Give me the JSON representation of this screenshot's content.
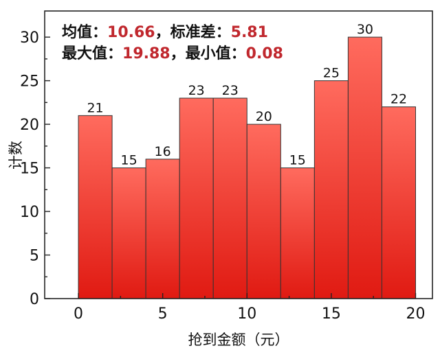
{
  "chart_data": {
    "type": "histogram",
    "bins": [
      {
        "x0": 0,
        "x1": 2,
        "count": 21
      },
      {
        "x0": 2,
        "x1": 4,
        "count": 15
      },
      {
        "x0": 4,
        "x1": 6,
        "count": 16
      },
      {
        "x0": 6,
        "x1": 8,
        "count": 23
      },
      {
        "x0": 8,
        "x1": 10,
        "count": 23
      },
      {
        "x0": 10,
        "x1": 12,
        "count": 20
      },
      {
        "x0": 12,
        "x1": 14,
        "count": 15
      },
      {
        "x0": 14,
        "x1": 16,
        "count": 25
      },
      {
        "x0": 16,
        "x1": 18,
        "count": 30
      },
      {
        "x0": 18,
        "x1": 20,
        "count": 22
      }
    ],
    "xlim": [
      -2,
      21
    ],
    "ylim": [
      0,
      33
    ],
    "xticks": [
      0,
      5,
      10,
      15,
      20
    ],
    "yticks": [
      0,
      5,
      10,
      15,
      20,
      25,
      30
    ],
    "xlabel": "抢到金额（元）",
    "ylabel": "计数",
    "bar_color_top": "#ff6b5e",
    "bar_color_bottom": "#e01a12",
    "annotations": {
      "line1": {
        "key1": "均值：",
        "val1": "10.66",
        "sep": "，",
        "key2": "标准差：",
        "val2": "5.81"
      },
      "line2": {
        "key1": "最大值：",
        "val1": "19.88",
        "sep": "，",
        "key2": "最小值：",
        "val2": "0.08"
      }
    }
  }
}
